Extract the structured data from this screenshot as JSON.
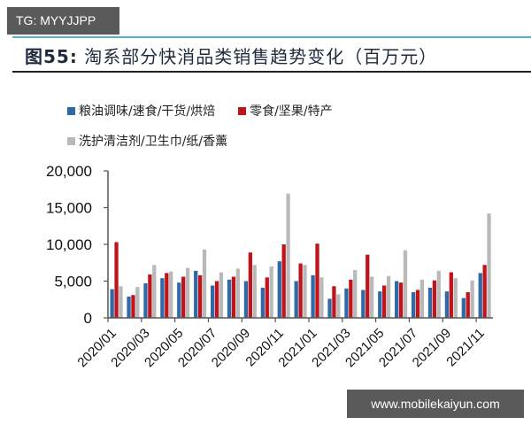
{
  "watermark_top": "TG: MYYJJPP",
  "watermark_bottom": "www.mobilekaiyun.com",
  "header": {
    "figure_label": "图55:",
    "title": "淘系部分快消品类销售趋势变化（百万元）"
  },
  "colors": {
    "series_blue": "#2e6aa6",
    "series_red": "#c0141c",
    "series_gray": "#b9b9b9",
    "top_rule": "#4fb3d0",
    "axis": "#555555"
  },
  "legend": [
    {
      "label": "粮油调味/速食/干货/烘焙",
      "color": "#2e6aa6"
    },
    {
      "label": "零食/坚果/特产",
      "color": "#c0141c"
    },
    {
      "label": "洗护清洁剂/卫生巾/纸/香薰",
      "color": "#b9b9b9"
    }
  ],
  "chart_data": {
    "type": "bar",
    "title": "淘系部分快消品类销售趋势变化（百万元）",
    "xlabel": "",
    "ylabel": "百万元",
    "ylim": [
      0,
      20000
    ],
    "yticks": [
      "0",
      "5,000",
      "10,000",
      "15,000",
      "20,000"
    ],
    "grid": false,
    "legend_position": "top",
    "categories": [
      "2020/01",
      "2020/02",
      "2020/03",
      "2020/04",
      "2020/05",
      "2020/06",
      "2020/07",
      "2020/08",
      "2020/09",
      "2020/10",
      "2020/11",
      "2020/12",
      "2021/01",
      "2021/02",
      "2021/03",
      "2021/04",
      "2021/05",
      "2021/06",
      "2021/07",
      "2021/08",
      "2021/09",
      "2021/10",
      "2021/11"
    ],
    "tick_labels": [
      "2020/01",
      "2020/03",
      "2020/05",
      "2020/07",
      "2020/09",
      "2020/11",
      "2021/01",
      "2021/03",
      "2021/05",
      "2021/07",
      "2021/09",
      "2021/11"
    ],
    "series": [
      {
        "name": "粮油调味/速食/干货/烘焙",
        "color": "#2e6aa6",
        "values": [
          3900,
          2900,
          4700,
          5400,
          4800,
          6400,
          4400,
          5200,
          5000,
          4100,
          7700,
          5000,
          5800,
          2600,
          4000,
          3800,
          3600,
          5000,
          3500,
          4100,
          3600,
          2700,
          6100
        ]
      },
      {
        "name": "零食/坚果/特产",
        "color": "#c0141c",
        "values": [
          10300,
          3100,
          5900,
          6100,
          5600,
          5800,
          5000,
          5600,
          8900,
          5500,
          10000,
          7400,
          10100,
          4300,
          5200,
          8600,
          4400,
          4800,
          3800,
          5100,
          6200,
          3500,
          7200
        ]
      },
      {
        "name": "洗护清洁剂/卫生巾/纸/香薰",
        "color": "#b9b9b9",
        "values": [
          4300,
          4200,
          7200,
          6300,
          6800,
          9300,
          6200,
          6700,
          7200,
          7000,
          16900,
          7200,
          5500,
          3200,
          6500,
          5600,
          5700,
          9200,
          5200,
          6400,
          5400,
          5100,
          14200
        ]
      }
    ]
  }
}
